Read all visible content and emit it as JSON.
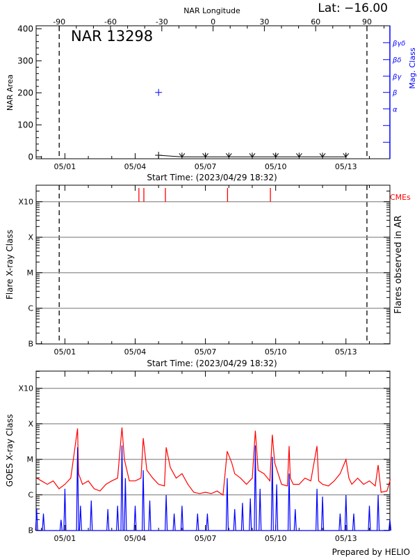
{
  "footer": "Prepared by HELIO",
  "colors": {
    "axis": "#000000",
    "blue": "#0000ff",
    "red": "#ff0000",
    "grid": "#999999"
  },
  "chart_data": [
    {
      "type": "scatter",
      "title": "NAR 13298",
      "corner_label": "Lat: −16.00",
      "top_xlabel": "NAR Longitude",
      "top_xticks": [
        "-90",
        "-60",
        "-30",
        "0",
        "30",
        "60",
        "90"
      ],
      "xlabel": "Start Time: (2023/04/29 18:32)",
      "xticks": [
        "05/01",
        "05/04",
        "05/07",
        "05/10",
        "05/13"
      ],
      "ylabel": "NAR Area",
      "ylim": [
        0,
        400
      ],
      "yticks": [
        "0",
        "100",
        "200",
        "300",
        "400"
      ],
      "y2label": "Mag. Class",
      "y2ticks": [
        "α",
        "β",
        "βγ",
        "βδ",
        "βγδ"
      ],
      "disk_limits": [
        "04/30 18:10",
        "05/13 21:30"
      ],
      "area_series": [
        [
          "05/05 00:00",
          5
        ],
        [
          "05/06 00:00",
          0
        ],
        [
          "05/07 00:00",
          0
        ],
        [
          "05/08 00:00",
          0
        ],
        [
          "05/09 00:00",
          0
        ],
        [
          "05/10 00:00",
          0
        ],
        [
          "05/11 00:00",
          0
        ],
        [
          "05/12 00:00",
          0
        ],
        [
          "05/13 00:00",
          0
        ]
      ],
      "mag_class_series": [
        [
          "05/05 00:00",
          "β"
        ]
      ]
    },
    {
      "type": "bar",
      "xlabel": "Start Time: (2023/04/29 18:32)",
      "xticks": [
        "05/01",
        "05/04",
        "05/07",
        "05/10",
        "05/13"
      ],
      "ylabel": "Flare X-ray Class",
      "yticks": [
        "B",
        "C",
        "M",
        "X",
        "X10"
      ],
      "y2label": "Flares observed in AR",
      "cme_label": "CMEs",
      "cmes": [
        "05/04 03:50",
        "05/04 08:55",
        "05/05 07:00",
        "05/07 22:40",
        "05/09 18:35"
      ],
      "flares": [],
      "disk_limits": [
        "04/30 18:10",
        "05/13 21:30"
      ]
    },
    {
      "type": "line",
      "xlabel": "",
      "xticks": [
        "05/01",
        "05/04",
        "05/07",
        "05/10",
        "05/13"
      ],
      "ylabel": "GOES X-ray Class",
      "yticks": [
        "B",
        "C",
        "M",
        "X",
        "X10"
      ],
      "series": [
        {
          "color": "#ff0000",
          "values": [
            [
              "04/29 19:00",
              3e-06
            ],
            [
              "04/30 00:00",
              2.5e-06
            ],
            [
              "04/30 06:00",
              2e-06
            ],
            [
              "04/30 12:00",
              2.5e-06
            ],
            [
              "04/30 18:00",
              1.5e-06
            ],
            [
              "05/01 00:00",
              2e-06
            ],
            [
              "05/01 06:00",
              3e-06
            ],
            [
              "05/01 13:00",
              7.5e-05
            ],
            [
              "05/01 14:00",
              4e-06
            ],
            [
              "05/01 18:00",
              2e-06
            ],
            [
              "05/02 00:00",
              2.5e-06
            ],
            [
              "05/02 06:00",
              1.5e-06
            ],
            [
              "05/02 12:00",
              1.3e-06
            ],
            [
              "05/02 18:00",
              2e-06
            ],
            [
              "05/03 00:00",
              2.5e-06
            ],
            [
              "05/03 06:00",
              3e-06
            ],
            [
              "05/03 10:30",
              8e-05
            ],
            [
              "05/03 13:00",
              1e-05
            ],
            [
              "05/03 18:00",
              2.5e-06
            ],
            [
              "05/04 00:00",
              2.5e-06
            ],
            [
              "05/04 06:00",
              3e-06
            ],
            [
              "05/04 08:15",
              4e-05
            ],
            [
              "05/04 12:00",
              5e-06
            ],
            [
              "05/04 18:00",
              3e-06
            ],
            [
              "05/05 00:00",
              2e-06
            ],
            [
              "05/05 06:00",
              1.8e-06
            ],
            [
              "05/05 07:45",
              2.2e-05
            ],
            [
              "05/05 12:00",
              6e-06
            ],
            [
              "05/05 18:00",
              3e-06
            ],
            [
              "05/06 00:00",
              4e-06
            ],
            [
              "05/06 06:00",
              2e-06
            ],
            [
              "05/06 12:00",
              1.2e-06
            ],
            [
              "05/06 18:00",
              1.1e-06
            ],
            [
              "05/07 00:00",
              1.2e-06
            ],
            [
              "05/07 06:00",
              1.1e-06
            ],
            [
              "05/07 12:00",
              1.3e-06
            ],
            [
              "05/07 18:00",
              1e-06
            ],
            [
              "05/07 22:20",
              1.7e-05
            ],
            [
              "05/08 03:00",
              8e-06
            ],
            [
              "05/08 06:00",
              4e-06
            ],
            [
              "05/08 12:00",
              3e-06
            ],
            [
              "05/08 18:00",
              2e-06
            ],
            [
              "05/09 00:00",
              3e-06
            ],
            [
              "05/09 03:10",
              6.5e-05
            ],
            [
              "05/09 06:00",
              5e-06
            ],
            [
              "05/09 12:00",
              4e-06
            ],
            [
              "05/09 18:00",
              2.5e-06
            ],
            [
              "05/09 20:30",
              5e-05
            ],
            [
              "05/09 23:00",
              8e-06
            ],
            [
              "05/10 06:00",
              2e-06
            ],
            [
              "05/10 12:00",
              1.8e-06
            ],
            [
              "05/10 13:45",
              2.4e-05
            ],
            [
              "05/10 15:00",
              3e-06
            ],
            [
              "05/10 18:00",
              2e-06
            ],
            [
              "05/11 00:00",
              2e-06
            ],
            [
              "05/11 06:00",
              3e-06
            ],
            [
              "05/11 12:00",
              2.5e-06
            ],
            [
              "05/11 18:20",
              2.4e-05
            ],
            [
              "05/11 20:00",
              2.5e-06
            ],
            [
              "05/12 00:00",
              2e-06
            ],
            [
              "05/12 06:00",
              1.8e-06
            ],
            [
              "05/12 12:00",
              2.5e-06
            ],
            [
              "05/12 18:00",
              4e-06
            ],
            [
              "05/13 00:00",
              1e-05
            ],
            [
              "05/13 03:00",
              3e-06
            ],
            [
              "05/13 06:00",
              2e-06
            ],
            [
              "05/13 12:00",
              3e-06
            ],
            [
              "05/13 18:00",
              2e-06
            ],
            [
              "05/14 00:00",
              2.5e-06
            ],
            [
              "05/14 06:00",
              1.8e-06
            ],
            [
              "05/14 09:00",
              7e-06
            ],
            [
              "05/14 12:00",
              1.2e-06
            ],
            [
              "05/14 18:00",
              1.3e-06
            ],
            [
              "05/14 21:30",
              2.8e-06
            ]
          ]
        },
        {
          "color": "#0000ff",
          "values": [
            [
              "04/29 19:00",
              4e-07
            ],
            [
              "04/30 02:00",
              3e-07
            ],
            [
              "04/30 20:00",
              2e-07
            ],
            [
              "05/01 00:00",
              1.5e-06
            ],
            [
              "05/01 13:00",
              2.2e-05
            ],
            [
              "05/01 16:00",
              5e-07
            ],
            [
              "05/02 03:00",
              7e-07
            ],
            [
              "05/02 20:00",
              4e-07
            ],
            [
              "05/03 06:00",
              5e-07
            ],
            [
              "05/03 10:30",
              2.5e-05
            ],
            [
              "05/03 14:00",
              3e-06
            ],
            [
              "05/04 00:00",
              5e-07
            ],
            [
              "05/04 08:15",
              5e-06
            ],
            [
              "05/04 15:00",
              7e-07
            ],
            [
              "05/05 07:45",
              1e-06
            ],
            [
              "05/05 16:00",
              3e-07
            ],
            [
              "05/06 00:00",
              5e-07
            ],
            [
              "05/06 16:00",
              3e-07
            ],
            [
              "05/07 02:00",
              3e-07
            ],
            [
              "05/07 22:20",
              3e-06
            ],
            [
              "05/08 06:00",
              4e-07
            ],
            [
              "05/08 14:00",
              6e-07
            ],
            [
              "05/08 22:00",
              8e-07
            ],
            [
              "05/09 03:10",
              2.5e-05
            ],
            [
              "05/09 08:00",
              1.5e-06
            ],
            [
              "05/09 20:30",
              1.2e-05
            ],
            [
              "05/10 01:00",
              2e-06
            ],
            [
              "05/10 13:45",
              4e-06
            ],
            [
              "05/10 20:00",
              4e-07
            ],
            [
              "05/11 18:20",
              1.5e-06
            ],
            [
              "05/12 00:00",
              9e-07
            ],
            [
              "05/12 18:00",
              3e-07
            ],
            [
              "05/13 00:00",
              1e-06
            ],
            [
              "05/13 08:00",
              3e-07
            ],
            [
              "05/14 00:00",
              5e-07
            ],
            [
              "05/14 09:00",
              1e-06
            ],
            [
              "05/14 21:00",
              2e-07
            ]
          ]
        }
      ]
    }
  ]
}
